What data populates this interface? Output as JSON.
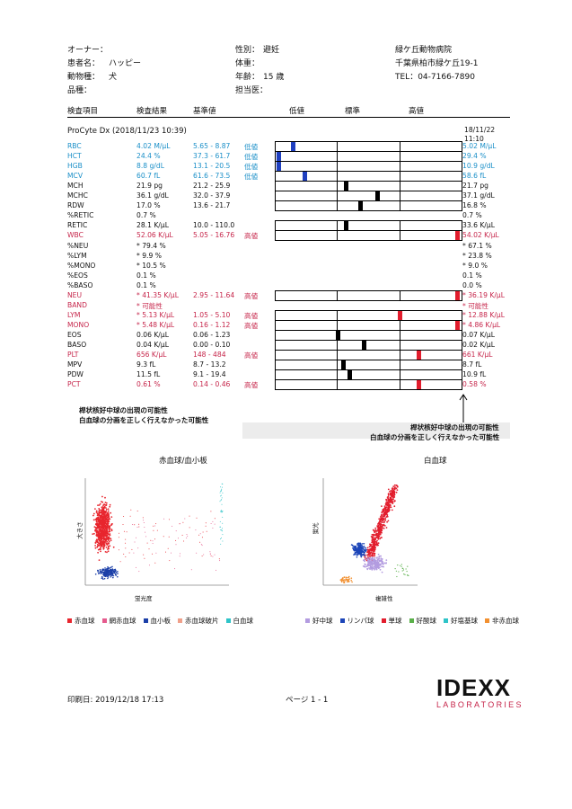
{
  "owner": {
    "label": "オーナー：",
    "value": ""
  },
  "patient": {
    "label": "患者名：",
    "value": "ハッピー"
  },
  "species": {
    "label": "動物種：",
    "value": "犬"
  },
  "breed": {
    "label": "品種：",
    "value": ""
  },
  "sex": {
    "label": "性別：",
    "value": "避妊"
  },
  "weight": {
    "label": "体重：",
    "value": ""
  },
  "age": {
    "label": "年齢：",
    "value": "15 歳"
  },
  "doctor": {
    "label": "担当医：",
    "value": ""
  },
  "clinic": {
    "name": "緑ケ丘動物病院",
    "address": "千葉県柏市緑ケ丘19-1",
    "tel": "TEL：04-7166-7890"
  },
  "columns": {
    "item": "検査項目",
    "result": "検査結果",
    "ref": "基準値",
    "low": "低値",
    "normal": "標準",
    "high": "高値"
  },
  "instrument": "ProCyte Dx (2018/11/23 10:39)",
  "prev_date": "18/11/22",
  "prev_time": "11:10",
  "rows": [
    {
      "name": "RBC",
      "result": "4.02 M/μL",
      "ref": "5.65 - 8.87",
      "flag": "低値",
      "prev": "5.02 M/μL",
      "color": "blue",
      "bar": 0.1,
      "barColor": "#1f3fbf"
    },
    {
      "name": "HCT",
      "result": "24.4 %",
      "ref": "37.3 - 61.7",
      "flag": "低値",
      "prev": "29.4 %",
      "color": "blue",
      "bar": 0.02,
      "barColor": "#1f3fbf"
    },
    {
      "name": "HGB",
      "result": "8.8 g/dL",
      "ref": "13.1 - 20.5",
      "flag": "低値",
      "prev": "10.9 g/dL",
      "color": "blue",
      "bar": 0.02,
      "barColor": "#1f3fbf"
    },
    {
      "name": "MCV",
      "result": "60.7 fL",
      "ref": "61.6 - 73.5",
      "flag": "低値",
      "prev": "58.6 fL",
      "color": "blue",
      "bar": 0.16,
      "barColor": "#1f3fbf"
    },
    {
      "name": "MCH",
      "result": "21.9 pg",
      "ref": "21.2 - 25.9",
      "flag": "",
      "prev": "21.7 pg",
      "color": "blk",
      "bar": 0.38,
      "barColor": "#000"
    },
    {
      "name": "MCHC",
      "result": "36.1 g/dL",
      "ref": "32.0 - 37.9",
      "flag": "",
      "prev": "37.1 g/dL",
      "color": "blk",
      "bar": 0.55,
      "barColor": "#000"
    },
    {
      "name": "RDW",
      "result": "17.0 %",
      "ref": "13.6 - 21.7",
      "flag": "",
      "prev": "16.8 %",
      "color": "blk",
      "bar": 0.46,
      "barColor": "#000"
    },
    {
      "name": "%RETIC",
      "result": "0.7 %",
      "ref": "",
      "flag": "",
      "prev": "0.7 %",
      "color": "blk",
      "bar": null
    },
    {
      "name": "RETIC",
      "result": "28.1 K/μL",
      "ref": "10.0 - 110.0",
      "flag": "",
      "prev": "33.6 K/μL",
      "color": "blk",
      "bar": 0.38,
      "barColor": "#000"
    },
    {
      "name": "WBC",
      "result": "52.06 K/μL",
      "ref": "5.05 - 16.76",
      "flag": "高値",
      "prev": "54.02 K/μL",
      "color": "red",
      "bar": 0.98,
      "barColor": "#e21d2d"
    },
    {
      "name": "%NEU",
      "result": "* 79.4 %",
      "ref": "",
      "flag": "",
      "prev": "* 67.1 %",
      "color": "blk",
      "bar": null
    },
    {
      "name": "%LYM",
      "result": "* 9.9 %",
      "ref": "",
      "flag": "",
      "prev": "* 23.8 %",
      "color": "blk",
      "bar": null
    },
    {
      "name": "%MONO",
      "result": "* 10.5 %",
      "ref": "",
      "flag": "",
      "prev": "* 9.0 %",
      "color": "blk",
      "bar": null
    },
    {
      "name": "%EOS",
      "result": "0.1 %",
      "ref": "",
      "flag": "",
      "prev": "0.1 %",
      "color": "blk",
      "bar": null
    },
    {
      "name": "%BASO",
      "result": "0.1 %",
      "ref": "",
      "flag": "",
      "prev": "0.0 %",
      "color": "blk",
      "bar": null
    },
    {
      "name": "NEU",
      "result": "* 41.35 K/μL",
      "ref": "2.95 - 11.64",
      "flag": "高値",
      "prev": "* 36.19 K/μL",
      "color": "red",
      "bar": 0.98,
      "barColor": "#e21d2d"
    },
    {
      "name": "  BAND",
      "result": "* 可能性",
      "ref": "",
      "flag": "",
      "prev": "* 可能性",
      "color": "red",
      "bar": null
    },
    {
      "name": "LYM",
      "result": "* 5.13 K/μL",
      "ref": "1.05 - 5.10",
      "flag": "高値",
      "prev": "* 12.88 K/μL",
      "color": "red",
      "bar": 0.67,
      "barColor": "#e21d2d"
    },
    {
      "name": "MONO",
      "result": "* 5.48 K/μL",
      "ref": "0.16 - 1.12",
      "flag": "高値",
      "prev": "* 4.86 K/μL",
      "color": "red",
      "bar": 0.98,
      "barColor": "#e21d2d"
    },
    {
      "name": "EOS",
      "result": "0.06 K/μL",
      "ref": "0.06 - 1.23",
      "flag": "",
      "prev": "0.07 K/μL",
      "color": "blk",
      "bar": 0.34,
      "barColor": "#000"
    },
    {
      "name": "BASO",
      "result": "0.04 K/μL",
      "ref": "0.00 - 0.10",
      "flag": "",
      "prev": "0.02 K/μL",
      "color": "blk",
      "bar": 0.48,
      "barColor": "#000"
    },
    {
      "name": "PLT",
      "result": "656 K/μL",
      "ref": "148 - 484",
      "flag": "高値",
      "prev": "661 K/μL",
      "color": "red",
      "bar": 0.77,
      "barColor": "#e21d2d"
    },
    {
      "name": "MPV",
      "result": "9.3 fL",
      "ref": "8.7 - 13.2",
      "flag": "",
      "prev": "8.7 fL",
      "color": "blk",
      "bar": 0.37,
      "barColor": "#000"
    },
    {
      "name": "PDW",
      "result": "11.5 fL",
      "ref": "9.1 - 19.4",
      "flag": "",
      "prev": "10.9 fL",
      "color": "blk",
      "bar": 0.4,
      "barColor": "#000"
    },
    {
      "name": "PCT",
      "result": "0.61 %",
      "ref": "0.14 - 0.46",
      "flag": "高値",
      "prev": "0.58 %",
      "color": "red",
      "bar": 0.77,
      "barColor": "#e21d2d"
    }
  ],
  "notes_left": [
    "桿状核好中球の出現の可能性",
    "白血球の分画を正しく行えなかった可能性"
  ],
  "notes_right": [
    "桿状核好中球の出現の可能性",
    "白血球の分画を正しく行えなかった可能性"
  ],
  "plot1": {
    "title": "赤血球/血小板",
    "ylabel": "大きさ",
    "xlabel": "蛍光度",
    "legend": [
      "赤血球",
      "網赤血球",
      "血小板",
      "赤血球破片",
      "白血球"
    ]
  },
  "plot2": {
    "title": "白血球",
    "ylabel": "蛍光",
    "xlabel": "複雑性",
    "legend": [
      "好中球",
      "リンパ球",
      "単球",
      "好酸球",
      "好塩基球",
      "非赤血球"
    ]
  },
  "colors": {
    "rbc": "#e8262e",
    "retic": "#e55b8e",
    "plt": "#1b3fa8",
    "frag": "#f0a08a",
    "wbc": "#2ec4c8",
    "neu": "#b39ce0",
    "lym": "#1c45b8",
    "mono": "#e21d2d",
    "eos": "#5ab04a",
    "baso": "#2ec4c8",
    "nonrbc": "#f29030"
  },
  "footer": {
    "printed": "印刷日: 2019/12/18 17:13",
    "page": "ページ 1 - 1"
  },
  "logo": {
    "top": "IDEXX",
    "bottom": "LABORATORIES"
  }
}
